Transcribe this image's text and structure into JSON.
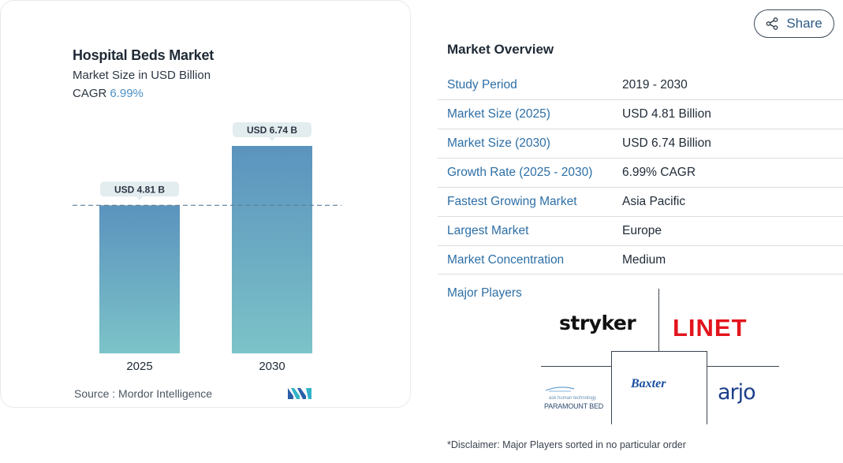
{
  "chart_data": {
    "type": "bar",
    "title": "Hospital Beds Market",
    "subtitle": "Market Size in USD Billion",
    "cagr_label": "CAGR",
    "cagr_value": "6.99%",
    "categories": [
      "2025",
      "2030"
    ],
    "values": [
      4.81,
      6.74
    ],
    "data_labels": [
      "USD 4.81 B",
      "USD 6.74 B"
    ],
    "ylim": [
      0,
      6.74
    ],
    "reference_line": 4.81,
    "grid": false,
    "bar_gradient": [
      "#5b93be",
      "#7cc3c8"
    ],
    "source": "Source :  Mordor Intelligence"
  },
  "share": {
    "label": "Share",
    "icon": "share-icon"
  },
  "overview": {
    "title": "Market Overview",
    "rows": [
      {
        "label": "Study Period",
        "value": "2019 - 2030"
      },
      {
        "label": "Market Size (2025)",
        "value": "USD 4.81 Billion"
      },
      {
        "label": "Market Size (2030)",
        "value": "USD 6.74 Billion"
      },
      {
        "label": "Growth Rate (2025 - 2030)",
        "value": "6.99% CAGR"
      },
      {
        "label": "Fastest Growing Market",
        "value": "Asia Pacific"
      },
      {
        "label": "Largest Market",
        "value": "Europe"
      },
      {
        "label": "Market Concentration",
        "value": "Medium"
      }
    ],
    "players_label": "Major Players",
    "players": {
      "stryker": "stryker",
      "linet": "LINET",
      "baxter": "Baxter",
      "arjo": "arjo",
      "paramount_tag": "ask human technology",
      "paramount_name": "PARAMOUNT BED"
    },
    "disclaimer": "*Disclaimer: Major Players sorted in no particular order"
  },
  "colors": {
    "accent": "#2d6fa6",
    "linet_red": "#e3141d",
    "baxter_blue": "#1a4fa0",
    "arjo_blue": "#1b3f8a"
  }
}
